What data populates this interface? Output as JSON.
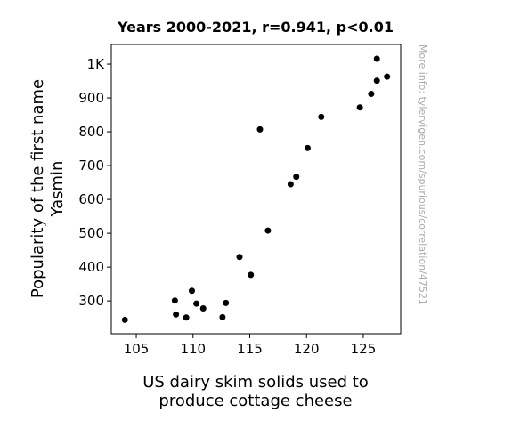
{
  "chart_data": {
    "type": "scatter",
    "title": "Years 2000-2021, r=0.941, p<0.01",
    "xlabel_lines": [
      "US dairy skim solids used to",
      "produce cottage cheese"
    ],
    "ylabel_lines": [
      "Popularity of the first name",
      "Yasmin"
    ],
    "side_note": "More info: tylervigen.com/spurious/correlation/47521",
    "xlim": [
      102.8,
      128.3
    ],
    "ylim": [
      203,
      1058
    ],
    "x_ticks": [
      {
        "value": 105,
        "label": "105"
      },
      {
        "value": 110,
        "label": "110"
      },
      {
        "value": 115,
        "label": "115"
      },
      {
        "value": 120,
        "label": "120"
      },
      {
        "value": 125,
        "label": "125"
      }
    ],
    "y_ticks": [
      {
        "value": 300,
        "label": "300"
      },
      {
        "value": 400,
        "label": "400"
      },
      {
        "value": 500,
        "label": "500"
      },
      {
        "value": 600,
        "label": "600"
      },
      {
        "value": 700,
        "label": "700"
      },
      {
        "value": 800,
        "label": "800"
      },
      {
        "value": 900,
        "label": "900"
      },
      {
        "value": 1000,
        "label": "1K"
      }
    ],
    "grid": false,
    "marker_color": "#000000",
    "points": [
      {
        "x": 104.0,
        "y": 244
      },
      {
        "x": 108.4,
        "y": 301
      },
      {
        "x": 108.5,
        "y": 260
      },
      {
        "x": 109.4,
        "y": 251
      },
      {
        "x": 109.9,
        "y": 330
      },
      {
        "x": 110.3,
        "y": 292
      },
      {
        "x": 110.9,
        "y": 278
      },
      {
        "x": 112.6,
        "y": 252
      },
      {
        "x": 112.9,
        "y": 294
      },
      {
        "x": 114.1,
        "y": 430
      },
      {
        "x": 115.1,
        "y": 377
      },
      {
        "x": 115.9,
        "y": 807
      },
      {
        "x": 116.6,
        "y": 508
      },
      {
        "x": 118.6,
        "y": 645
      },
      {
        "x": 119.1,
        "y": 667
      },
      {
        "x": 120.1,
        "y": 752
      },
      {
        "x": 121.3,
        "y": 844
      },
      {
        "x": 124.7,
        "y": 872
      },
      {
        "x": 125.7,
        "y": 912
      },
      {
        "x": 126.2,
        "y": 951
      },
      {
        "x": 126.2,
        "y": 1016
      },
      {
        "x": 127.1,
        "y": 963
      }
    ]
  }
}
